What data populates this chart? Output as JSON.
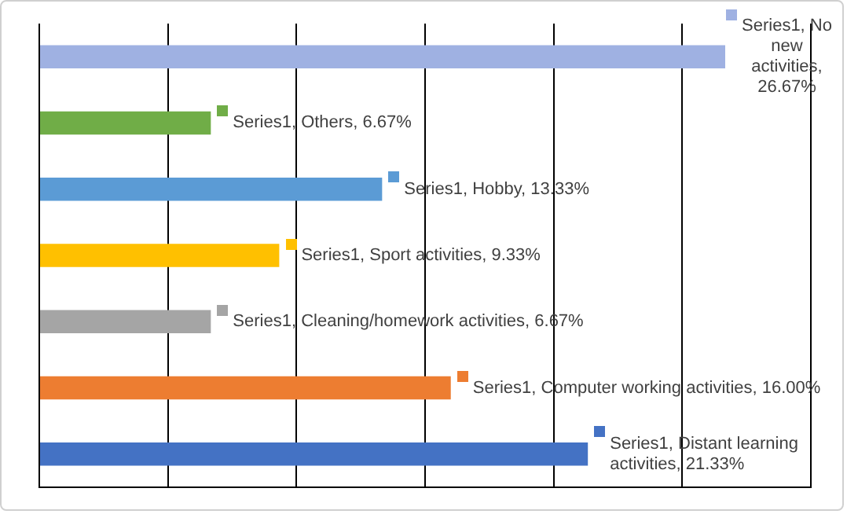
{
  "chart_data": {
    "type": "bar",
    "orientation": "horizontal",
    "categories": [
      null,
      null,
      null,
      null,
      null,
      null,
      null
    ],
    "series": [
      {
        "colors": [
          "#9fb1e2",
          "#70ad47",
          "#5b9bd5",
          "#ffc000",
          "#a5a5a5",
          "#ed7d31",
          "#4472c4"
        ],
        "values": [
          26.67,
          6.67,
          13.33,
          9.33,
          6.67,
          16.0,
          21.33
        ],
        "value_labels": [
          "Series1, No new activities, 26.67%",
          "Series1, Others, 6.67%",
          "Series1, Hobby, 13.33%",
          "Series1, Sport activities, 9.33%",
          "Series1, Cleaning/homework activities, 6.67%",
          "Series1, Computer working activities, 16.00%",
          "Series1, Distant learning activities, 21.33%"
        ]
      }
    ],
    "xlim": [
      0,
      30
    ],
    "xticks": [
      {
        "value": 0,
        "label": null
      },
      {
        "value": 5,
        "label": null
      },
      {
        "value": 10,
        "label": null
      },
      {
        "value": 15,
        "label": null
      },
      {
        "value": 20,
        "label": null
      },
      {
        "value": 25,
        "label": null
      },
      {
        "value": 30,
        "label": null
      }
    ],
    "grid": "x",
    "tick_labels": false,
    "legend": false
  }
}
